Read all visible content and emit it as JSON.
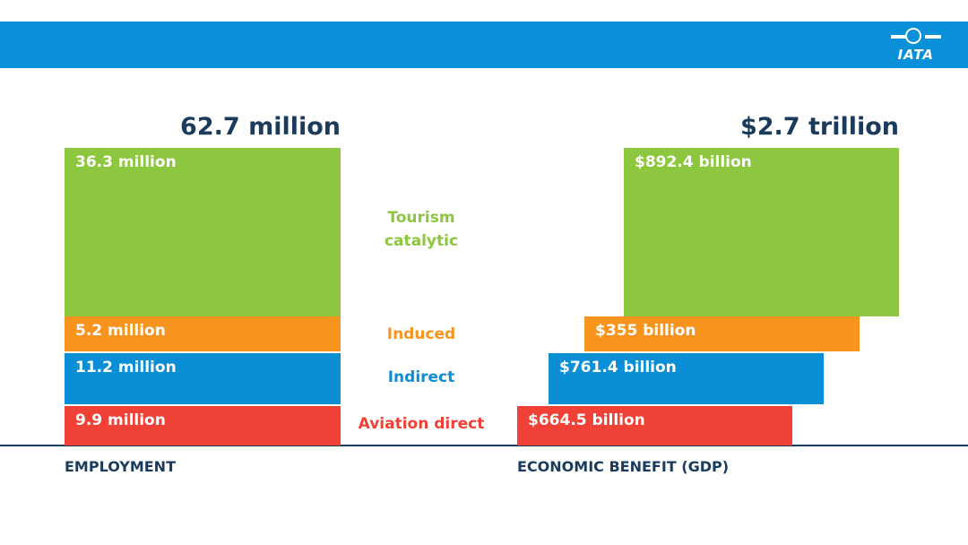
{
  "logo": "IATA",
  "employment": {
    "total": "62.7 million",
    "label": "EMPLOYMENT",
    "segments": [
      "36.3 million",
      "5.2 million",
      "11.2 million",
      "9.9 million"
    ]
  },
  "gdp": {
    "total": "$2.7 trillion",
    "label": "ECONOMIC BENEFIT (GDP)",
    "segments": [
      "$892.4 billion",
      "$355 billion",
      "$761.4 billion",
      "$664.5 billion"
    ]
  },
  "categories": [
    "Tourism catalytic",
    "Induced",
    "Indirect",
    "Aviation direct"
  ]
}
